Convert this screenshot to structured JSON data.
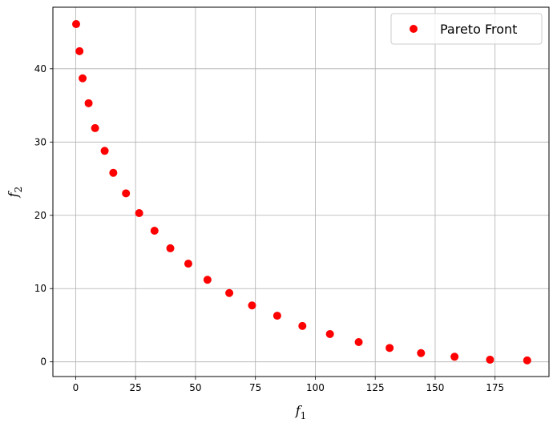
{
  "chart_data": {
    "type": "scatter",
    "xlabel": "f",
    "xlabel_sub": "1",
    "ylabel": "f",
    "ylabel_sub": "2",
    "xlim": [
      -9.5,
      197.5
    ],
    "ylim": [
      -2.0,
      48.4
    ],
    "xticks": [
      0,
      25,
      50,
      75,
      100,
      125,
      150,
      175
    ],
    "yticks": [
      0,
      10,
      20,
      30,
      40
    ],
    "grid": true,
    "legend_position": "top-right",
    "series": [
      {
        "name": "Pareto Front",
        "color": "#ff0000",
        "marker": "circle",
        "x": [
          0.2,
          1.6,
          2.9,
          5.4,
          8.1,
          12.1,
          15.7,
          21.0,
          26.5,
          32.9,
          39.5,
          47.0,
          55.0,
          64.1,
          73.6,
          84.1,
          94.6,
          106.1,
          118.1,
          131.0,
          144.1,
          158.1,
          172.9,
          188.4
        ],
        "y": [
          46.1,
          42.4,
          38.7,
          35.3,
          31.9,
          28.8,
          25.8,
          23.0,
          20.3,
          17.9,
          15.5,
          13.4,
          11.2,
          9.4,
          7.7,
          6.3,
          4.9,
          3.8,
          2.7,
          1.9,
          1.2,
          0.7,
          0.3,
          0.2
        ]
      }
    ]
  }
}
